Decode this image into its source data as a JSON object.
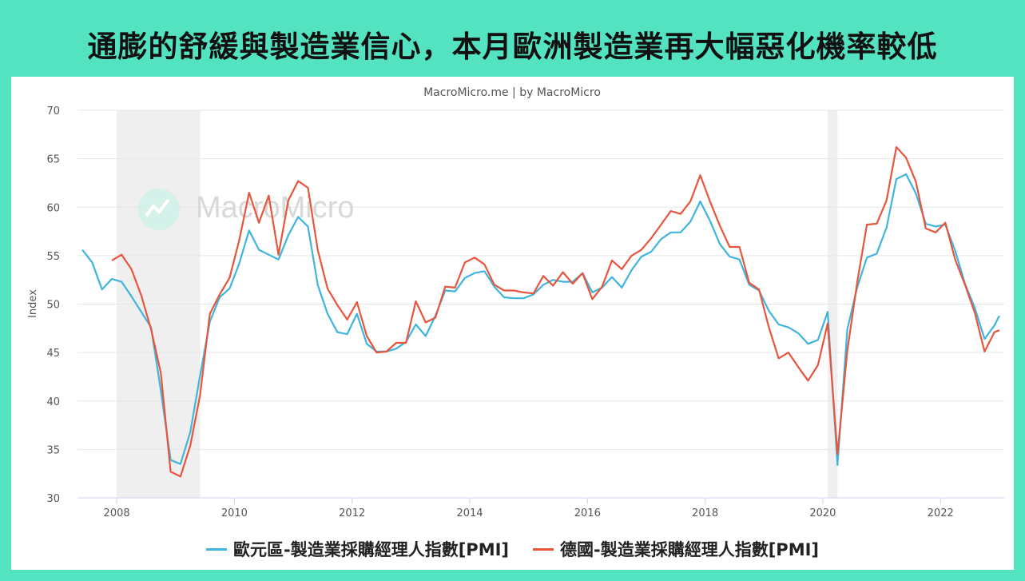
{
  "headline": "通膨的舒緩與製造業信心，本月歐洲製造業再大幅惡化機率較低",
  "colors": {
    "background": "#54e3c1",
    "euro": "#3fb4df",
    "germany": "#e8553d",
    "recession": "#efefef",
    "grid": "#e6e6e6"
  },
  "chart_data": {
    "type": "line",
    "subtitle": "MacroMicro.me | by MacroMicro",
    "watermark": "MacroMicro",
    "ylabel": "Index",
    "xlabel": "",
    "ylim": [
      30,
      70
    ],
    "xlim": [
      "2007-05",
      "2023-02"
    ],
    "yticks": [
      30,
      35,
      40,
      45,
      50,
      55,
      60,
      65,
      70
    ],
    "xticks": [
      "2008",
      "2010",
      "2012",
      "2014",
      "2016",
      "2018",
      "2020",
      "2022"
    ],
    "grid": true,
    "legend_position": "bottom",
    "shaded_regions": [
      {
        "start": "2008-01",
        "end": "2009-06"
      },
      {
        "start": "2020-02",
        "end": "2020-04"
      }
    ],
    "series": [
      {
        "name": "歐元區-製造業採購經理人指數[PMI]",
        "color": "#3fb4df",
        "points": [
          [
            "2007-06",
            55.6
          ],
          [
            "2007-08",
            54.3
          ],
          [
            "2007-10",
            51.5
          ],
          [
            "2007-12",
            52.6
          ],
          [
            "2008-02",
            52.3
          ],
          [
            "2008-04",
            50.8
          ],
          [
            "2008-06",
            49.2
          ],
          [
            "2008-08",
            47.6
          ],
          [
            "2008-10",
            41.1
          ],
          [
            "2008-12",
            33.9
          ],
          [
            "2009-02",
            33.5
          ],
          [
            "2009-04",
            36.8
          ],
          [
            "2009-06",
            42.6
          ],
          [
            "2009-08",
            48.2
          ],
          [
            "2009-10",
            50.7
          ],
          [
            "2009-12",
            51.6
          ],
          [
            "2010-02",
            54.2
          ],
          [
            "2010-04",
            57.6
          ],
          [
            "2010-06",
            55.6
          ],
          [
            "2010-08",
            55.1
          ],
          [
            "2010-10",
            54.6
          ],
          [
            "2010-12",
            57.1
          ],
          [
            "2011-02",
            59.0
          ],
          [
            "2011-04",
            58.0
          ],
          [
            "2011-06",
            52.0
          ],
          [
            "2011-08",
            49.0
          ],
          [
            "2011-10",
            47.1
          ],
          [
            "2011-12",
            46.9
          ],
          [
            "2012-02",
            49.0
          ],
          [
            "2012-04",
            45.9
          ],
          [
            "2012-06",
            45.1
          ],
          [
            "2012-08",
            45.1
          ],
          [
            "2012-10",
            45.4
          ],
          [
            "2012-12",
            46.1
          ],
          [
            "2013-02",
            47.9
          ],
          [
            "2013-04",
            46.7
          ],
          [
            "2013-06",
            48.8
          ],
          [
            "2013-08",
            51.4
          ],
          [
            "2013-10",
            51.3
          ],
          [
            "2013-12",
            52.7
          ],
          [
            "2014-02",
            53.2
          ],
          [
            "2014-04",
            53.4
          ],
          [
            "2014-06",
            51.8
          ],
          [
            "2014-08",
            50.7
          ],
          [
            "2014-10",
            50.6
          ],
          [
            "2014-12",
            50.6
          ],
          [
            "2015-02",
            51.0
          ],
          [
            "2015-04",
            52.0
          ],
          [
            "2015-06",
            52.5
          ],
          [
            "2015-08",
            52.3
          ],
          [
            "2015-10",
            52.3
          ],
          [
            "2015-12",
            53.2
          ],
          [
            "2016-02",
            51.2
          ],
          [
            "2016-04",
            51.7
          ],
          [
            "2016-06",
            52.8
          ],
          [
            "2016-08",
            51.7
          ],
          [
            "2016-10",
            53.5
          ],
          [
            "2016-12",
            54.9
          ],
          [
            "2017-02",
            55.4
          ],
          [
            "2017-04",
            56.7
          ],
          [
            "2017-06",
            57.4
          ],
          [
            "2017-08",
            57.4
          ],
          [
            "2017-10",
            58.5
          ],
          [
            "2017-12",
            60.6
          ],
          [
            "2018-02",
            58.6
          ],
          [
            "2018-04",
            56.2
          ],
          [
            "2018-06",
            54.9
          ],
          [
            "2018-08",
            54.6
          ],
          [
            "2018-10",
            52.0
          ],
          [
            "2018-12",
            51.4
          ],
          [
            "2019-02",
            49.3
          ],
          [
            "2019-04",
            47.9
          ],
          [
            "2019-06",
            47.6
          ],
          [
            "2019-08",
            47.0
          ],
          [
            "2019-10",
            45.9
          ],
          [
            "2019-12",
            46.3
          ],
          [
            "2020-02",
            49.2
          ],
          [
            "2020-04",
            33.4
          ],
          [
            "2020-06",
            47.4
          ],
          [
            "2020-08",
            51.7
          ],
          [
            "2020-10",
            54.8
          ],
          [
            "2020-12",
            55.2
          ],
          [
            "2021-02",
            57.9
          ],
          [
            "2021-04",
            62.9
          ],
          [
            "2021-06",
            63.4
          ],
          [
            "2021-08",
            61.4
          ],
          [
            "2021-10",
            58.3
          ],
          [
            "2021-12",
            58.0
          ],
          [
            "2022-02",
            58.2
          ],
          [
            "2022-04",
            55.5
          ],
          [
            "2022-06",
            52.1
          ],
          [
            "2022-08",
            49.6
          ],
          [
            "2022-10",
            46.4
          ],
          [
            "2022-12",
            47.8
          ],
          [
            "2023-01",
            48.8
          ]
        ]
      },
      {
        "name": "德國-製造業採購經理人指數[PMI]",
        "color": "#e8553d",
        "points": [
          [
            "2007-12",
            54.5
          ],
          [
            "2008-02",
            55.1
          ],
          [
            "2008-04",
            53.6
          ],
          [
            "2008-06",
            50.9
          ],
          [
            "2008-08",
            47.4
          ],
          [
            "2008-10",
            42.9
          ],
          [
            "2008-12",
            32.7
          ],
          [
            "2009-02",
            32.2
          ],
          [
            "2009-04",
            35.4
          ],
          [
            "2009-06",
            40.6
          ],
          [
            "2009-08",
            49.0
          ],
          [
            "2009-10",
            51.0
          ],
          [
            "2009-12",
            52.7
          ],
          [
            "2010-02",
            56.6
          ],
          [
            "2010-04",
            61.5
          ],
          [
            "2010-06",
            58.4
          ],
          [
            "2010-08",
            61.2
          ],
          [
            "2010-10",
            55.1
          ],
          [
            "2010-12",
            60.7
          ],
          [
            "2011-02",
            62.7
          ],
          [
            "2011-04",
            62.0
          ],
          [
            "2011-06",
            55.6
          ],
          [
            "2011-08",
            51.6
          ],
          [
            "2011-10",
            49.9
          ],
          [
            "2011-12",
            48.4
          ],
          [
            "2012-02",
            50.2
          ],
          [
            "2012-04",
            46.7
          ],
          [
            "2012-06",
            45.0
          ],
          [
            "2012-08",
            45.1
          ],
          [
            "2012-10",
            46.0
          ],
          [
            "2012-12",
            46.0
          ],
          [
            "2013-02",
            50.3
          ],
          [
            "2013-04",
            48.1
          ],
          [
            "2013-06",
            48.6
          ],
          [
            "2013-08",
            51.8
          ],
          [
            "2013-10",
            51.7
          ],
          [
            "2013-12",
            54.3
          ],
          [
            "2014-02",
            54.8
          ],
          [
            "2014-04",
            54.1
          ],
          [
            "2014-06",
            52.0
          ],
          [
            "2014-08",
            51.4
          ],
          [
            "2014-10",
            51.4
          ],
          [
            "2014-12",
            51.2
          ],
          [
            "2015-02",
            51.1
          ],
          [
            "2015-04",
            52.9
          ],
          [
            "2015-06",
            51.9
          ],
          [
            "2015-08",
            53.3
          ],
          [
            "2015-10",
            52.1
          ],
          [
            "2015-12",
            53.2
          ],
          [
            "2016-02",
            50.5
          ],
          [
            "2016-04",
            51.8
          ],
          [
            "2016-06",
            54.5
          ],
          [
            "2016-08",
            53.6
          ],
          [
            "2016-10",
            55.0
          ],
          [
            "2016-12",
            55.6
          ],
          [
            "2017-02",
            56.8
          ],
          [
            "2017-04",
            58.2
          ],
          [
            "2017-06",
            59.6
          ],
          [
            "2017-08",
            59.3
          ],
          [
            "2017-10",
            60.6
          ],
          [
            "2017-12",
            63.3
          ],
          [
            "2018-02",
            60.6
          ],
          [
            "2018-04",
            58.1
          ],
          [
            "2018-06",
            55.9
          ],
          [
            "2018-08",
            55.9
          ],
          [
            "2018-10",
            52.2
          ],
          [
            "2018-12",
            51.5
          ],
          [
            "2019-02",
            47.6
          ],
          [
            "2019-04",
            44.4
          ],
          [
            "2019-06",
            45.0
          ],
          [
            "2019-08",
            43.5
          ],
          [
            "2019-10",
            42.1
          ],
          [
            "2019-12",
            43.7
          ],
          [
            "2020-02",
            48.0
          ],
          [
            "2020-04",
            34.5
          ],
          [
            "2020-06",
            45.2
          ],
          [
            "2020-08",
            52.2
          ],
          [
            "2020-10",
            58.2
          ],
          [
            "2020-12",
            58.3
          ],
          [
            "2021-02",
            60.7
          ],
          [
            "2021-04",
            66.2
          ],
          [
            "2021-06",
            65.1
          ],
          [
            "2021-08",
            62.6
          ],
          [
            "2021-10",
            57.8
          ],
          [
            "2021-12",
            57.4
          ],
          [
            "2022-02",
            58.4
          ],
          [
            "2022-04",
            54.6
          ],
          [
            "2022-06",
            52.0
          ],
          [
            "2022-08",
            49.1
          ],
          [
            "2022-10",
            45.1
          ],
          [
            "2022-12",
            47.1
          ],
          [
            "2023-01",
            47.3
          ]
        ]
      }
    ]
  }
}
